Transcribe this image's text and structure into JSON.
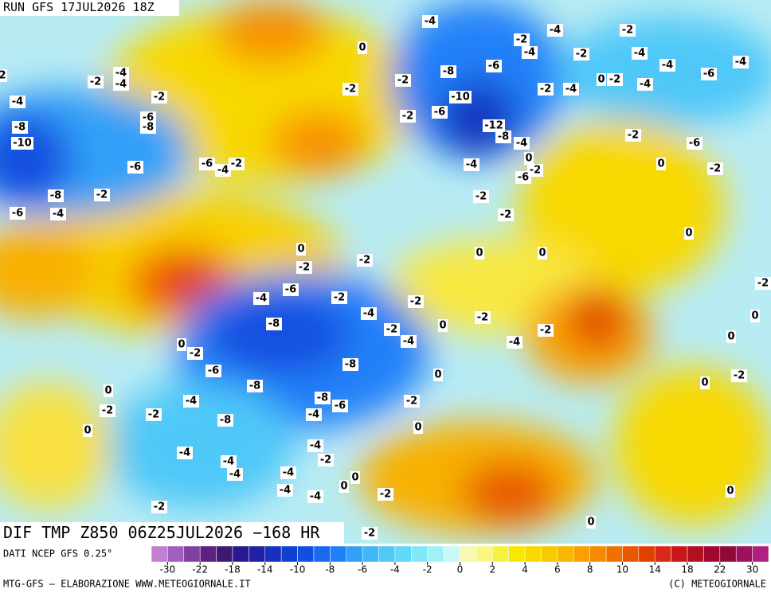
{
  "map": {
    "run_label": "RUN GFS 17JUL2026 18Z",
    "title": "DIF TMP Z850 06Z25JUL2026 −168 HR",
    "source": "DATI NCEP GFS 0.25°",
    "footer_left": "MTG-GFS — ELABORAZIONE WWW.METEOGIORNALE.IT",
    "footer_right": "(C) METEOGIORNALE",
    "colorbar": {
      "ticks": [
        -30,
        -22,
        -18,
        -14,
        -10,
        -8,
        -6,
        -4,
        -2,
        0,
        2,
        4,
        6,
        8,
        10,
        14,
        18,
        22,
        30
      ],
      "colors": [
        "#c080d0",
        "#a060c0",
        "#8040a0",
        "#602080",
        "#401870",
        "#2a1890",
        "#2020a8",
        "#1830c0",
        "#1040d0",
        "#1050e0",
        "#1868f0",
        "#2080f8",
        "#30a0f8",
        "#40b8f8",
        "#50c8f8",
        "#60d8f8",
        "#80e8f8",
        "#a0f0f8",
        "#c8f8f8",
        "#f8f8b0",
        "#f8f880",
        "#f8f040",
        "#f8e800",
        "#f8d800",
        "#f8c800",
        "#f8b800",
        "#f8a000",
        "#f88800",
        "#f07000",
        "#e85800",
        "#e04000",
        "#d82818",
        "#c81818",
        "#b01020",
        "#a00830",
        "#900838",
        "#a01060",
        "#b02080"
      ]
    },
    "contour_labels": [
      2,
      -2,
      -4,
      -4,
      -4,
      -2,
      -6,
      -8,
      -8,
      -10,
      -6,
      -6,
      -4,
      -2,
      -8,
      -2,
      -6,
      -4,
      0,
      -2,
      -4,
      -4,
      -2,
      -4,
      -2,
      -2,
      -4,
      -4,
      -4,
      -6,
      -8,
      -6,
      -2,
      -2,
      -4,
      0,
      -2,
      -4,
      -10,
      -6,
      -2,
      -12,
      -8,
      -4,
      0,
      -4,
      -2,
      -6,
      -2,
      -6,
      0,
      -2,
      -2,
      -2,
      0,
      0,
      -2,
      -2,
      0,
      0,
      -6,
      -4,
      -2,
      -8,
      -4,
      -2,
      -2,
      -4,
      0,
      -2,
      -2,
      -4,
      -8,
      -6,
      0,
      -2,
      -8,
      -4,
      -8,
      -6,
      -2,
      -4,
      -8,
      -2,
      -2,
      0,
      0,
      0,
      0,
      -4,
      -4,
      -4,
      -2,
      -4,
      -4,
      0,
      0,
      -4,
      -4,
      -2,
      -2,
      0,
      0,
      -2,
      -2,
      0,
      0,
      -2,
      0
    ]
  }
}
